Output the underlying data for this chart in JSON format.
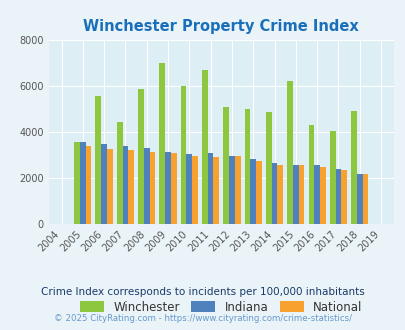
{
  "title": "Winchester Property Crime Index",
  "years": [
    2004,
    2005,
    2006,
    2007,
    2008,
    2009,
    2010,
    2011,
    2012,
    2013,
    2014,
    2015,
    2016,
    2017,
    2018,
    2019
  ],
  "winchester": [
    0,
    3550,
    5550,
    4450,
    5850,
    7000,
    6000,
    6700,
    5100,
    5000,
    4850,
    6200,
    4300,
    4050,
    4900,
    0
  ],
  "indiana": [
    0,
    3550,
    3500,
    3380,
    3290,
    3150,
    3050,
    3100,
    2980,
    2840,
    2640,
    2580,
    2580,
    2380,
    2190,
    0
  ],
  "national": [
    0,
    3380,
    3280,
    3200,
    3140,
    3080,
    2980,
    2930,
    2980,
    2730,
    2580,
    2580,
    2470,
    2360,
    2170,
    0
  ],
  "winchester_color": "#8dc63f",
  "indiana_color": "#4f81bd",
  "national_color": "#f9a12e",
  "background_color": "#eaf4f8",
  "plot_bg_color": "#ddeef5",
  "ylim": [
    0,
    8000
  ],
  "yticks": [
    0,
    2000,
    4000,
    6000,
    8000
  ],
  "legend_labels": [
    "Winchester",
    "Indiana",
    "National"
  ],
  "footnote1": "Crime Index corresponds to incidents per 100,000 inhabitants",
  "footnote2": "© 2025 CityRating.com - https://www.cityrating.com/crime-statistics/",
  "title_color": "#1a6fba",
  "footnote1_color": "#1a3a6a",
  "footnote2_color": "#6699cc",
  "bar_width": 0.27
}
